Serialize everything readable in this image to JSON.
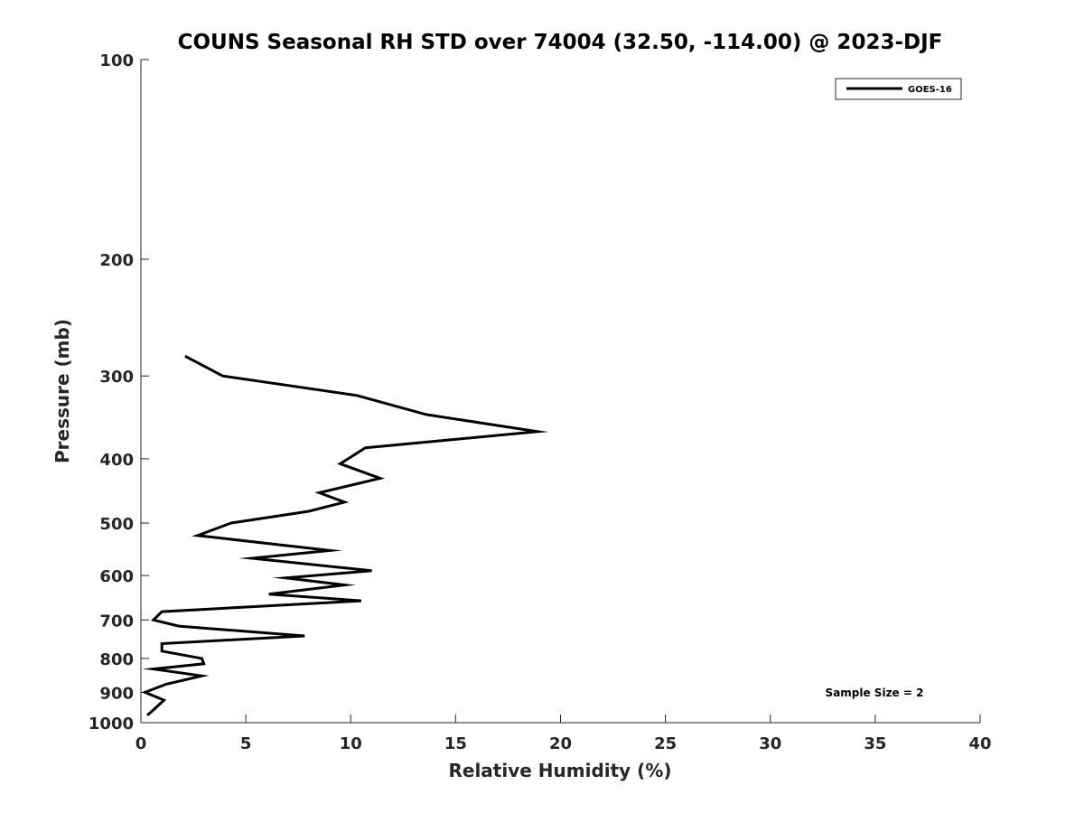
{
  "chart_data": {
    "type": "line",
    "title": "COUNS Seasonal RH STD over 74004 (32.50, -114.00) @ 2023-DJF",
    "xlabel": "Relative Humidity (%)",
    "ylabel": "Pressure (mb)",
    "xlim": [
      0,
      40
    ],
    "ylim": [
      100,
      1000
    ],
    "y_scale": "log",
    "y_reversed": true,
    "grid": false,
    "legend_position": "top-right",
    "x_ticks": [
      "0",
      "5",
      "10",
      "15",
      "20",
      "25",
      "30",
      "35",
      "40"
    ],
    "y_ticks": [
      "100",
      "200",
      "300",
      "400",
      "500",
      "600",
      "700",
      "800",
      "900",
      "1000"
    ],
    "annotation": "Sample Size = 2",
    "series": [
      {
        "name": "GOES-16",
        "color": "#000000",
        "points": [
          {
            "x": 2.1,
            "y": 280
          },
          {
            "x": 3.9,
            "y": 300
          },
          {
            "x": 10.3,
            "y": 321
          },
          {
            "x": 13.6,
            "y": 343
          },
          {
            "x": 18.9,
            "y": 364
          },
          {
            "x": 10.7,
            "y": 385
          },
          {
            "x": 9.5,
            "y": 407
          },
          {
            "x": 11.4,
            "y": 428
          },
          {
            "x": 8.5,
            "y": 450
          },
          {
            "x": 9.7,
            "y": 465
          },
          {
            "x": 8.0,
            "y": 480
          },
          {
            "x": 4.3,
            "y": 500
          },
          {
            "x": 2.7,
            "y": 522
          },
          {
            "x": 9.0,
            "y": 550
          },
          {
            "x": 5.3,
            "y": 565
          },
          {
            "x": 11.0,
            "y": 590
          },
          {
            "x": 6.9,
            "y": 605
          },
          {
            "x": 9.7,
            "y": 620
          },
          {
            "x": 6.1,
            "y": 640
          },
          {
            "x": 10.5,
            "y": 655
          },
          {
            "x": 1.0,
            "y": 680
          },
          {
            "x": 0.6,
            "y": 700
          },
          {
            "x": 1.8,
            "y": 715
          },
          {
            "x": 7.8,
            "y": 740
          },
          {
            "x": 1.0,
            "y": 760
          },
          {
            "x": 1.0,
            "y": 780
          },
          {
            "x": 2.9,
            "y": 800
          },
          {
            "x": 3.0,
            "y": 815
          },
          {
            "x": 0.6,
            "y": 830
          },
          {
            "x": 2.9,
            "y": 850
          },
          {
            "x": 1.2,
            "y": 875
          },
          {
            "x": 0.2,
            "y": 900
          },
          {
            "x": 1.1,
            "y": 925
          },
          {
            "x": 0.7,
            "y": 950
          },
          {
            "x": 0.3,
            "y": 975
          }
        ]
      }
    ]
  }
}
